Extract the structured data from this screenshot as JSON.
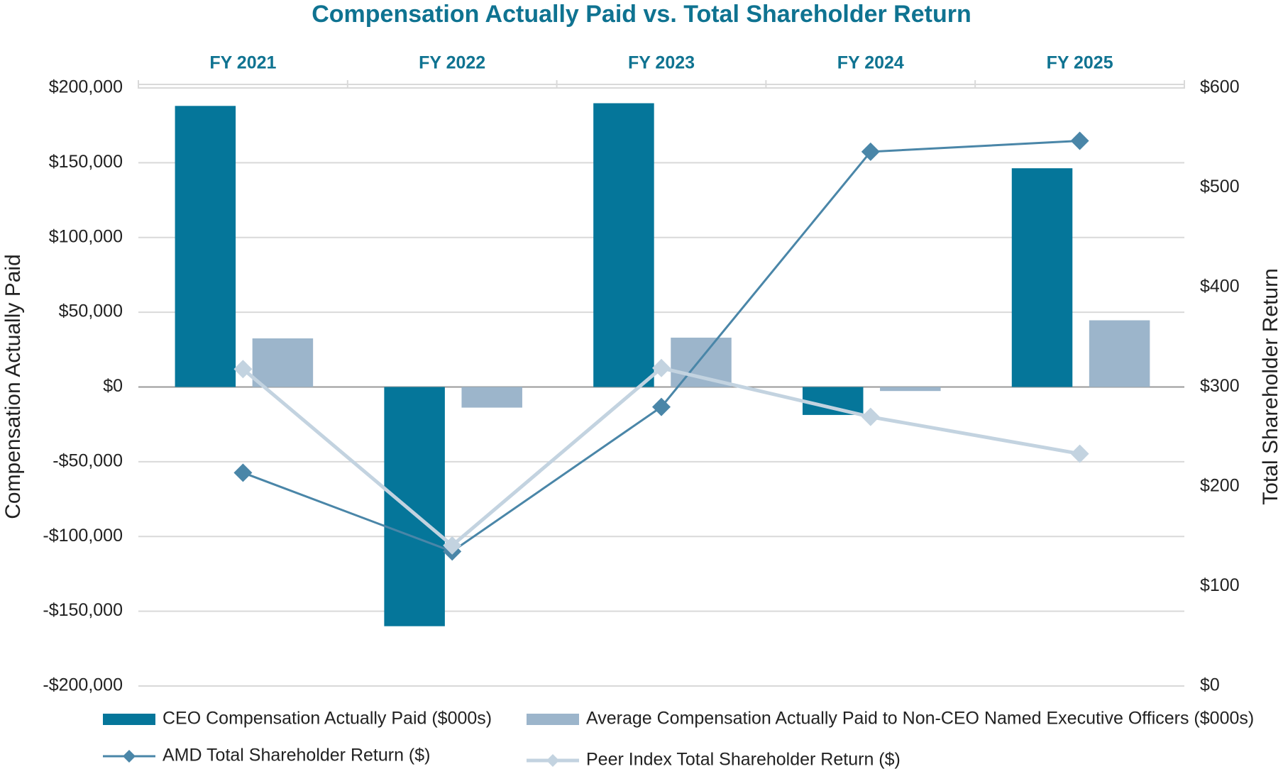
{
  "chart_data": {
    "type": "bar",
    "title": "Compensation Actually Paid vs. Total Shareholder Return",
    "y_label": "Compensation Actually Paid",
    "y2_label": "Total Shareholder Return",
    "categories": [
      "FY 2021",
      "FY 2022",
      "FY 2023",
      "FY 2024",
      "FY 2025"
    ],
    "series": [
      {
        "name": "CEO Compensation Actually Paid ($000s)",
        "type": "bar",
        "color": "#05769a",
        "values": [
          188000,
          -160000,
          189800,
          -18700,
          146300
        ]
      },
      {
        "name": "Average Compensation Actually Paid to Non-CEO Named Executive Officers ($000s)",
        "type": "bar",
        "color": "#9cb5cb",
        "values": [
          32500,
          -13800,
          33000,
          -2700,
          44600
        ]
      },
      {
        "name": "AMD Total Shareholder Return ($)",
        "type": "line",
        "axis": "y2",
        "color": "#4a86a8",
        "values": [
          214,
          135,
          280,
          536,
          547
        ]
      },
      {
        "name": "Peer Index Total Shareholder Return ($)",
        "type": "line",
        "axis": "y2",
        "color": "#c3d3e0",
        "values": [
          318,
          141,
          319,
          270,
          233
        ]
      }
    ],
    "ylim": [
      -200000,
      200000
    ],
    "yticks": [
      {
        "value": -200000,
        "label": "-$200,000"
      },
      {
        "value": -150000,
        "label": "-$150,000"
      },
      {
        "value": -100000,
        "label": "-$100,000"
      },
      {
        "value": -50000,
        "label": "-$50,000"
      },
      {
        "value": 0,
        "label": "$0"
      },
      {
        "value": 50000,
        "label": "$50,000"
      },
      {
        "value": 100000,
        "label": "$100,000"
      },
      {
        "value": 150000,
        "label": "$150,000"
      },
      {
        "value": 200000,
        "label": "$200,000"
      }
    ],
    "y2lim": [
      0,
      600
    ],
    "y2ticks": [
      {
        "value": 0,
        "label": "$0"
      },
      {
        "value": 100,
        "label": "$100"
      },
      {
        "value": 200,
        "label": "$200"
      },
      {
        "value": 300,
        "label": "$300"
      },
      {
        "value": 400,
        "label": "$400"
      },
      {
        "value": 500,
        "label": "$500"
      },
      {
        "value": 600,
        "label": "$600"
      }
    ],
    "grid": true,
    "legend": "bottom"
  }
}
